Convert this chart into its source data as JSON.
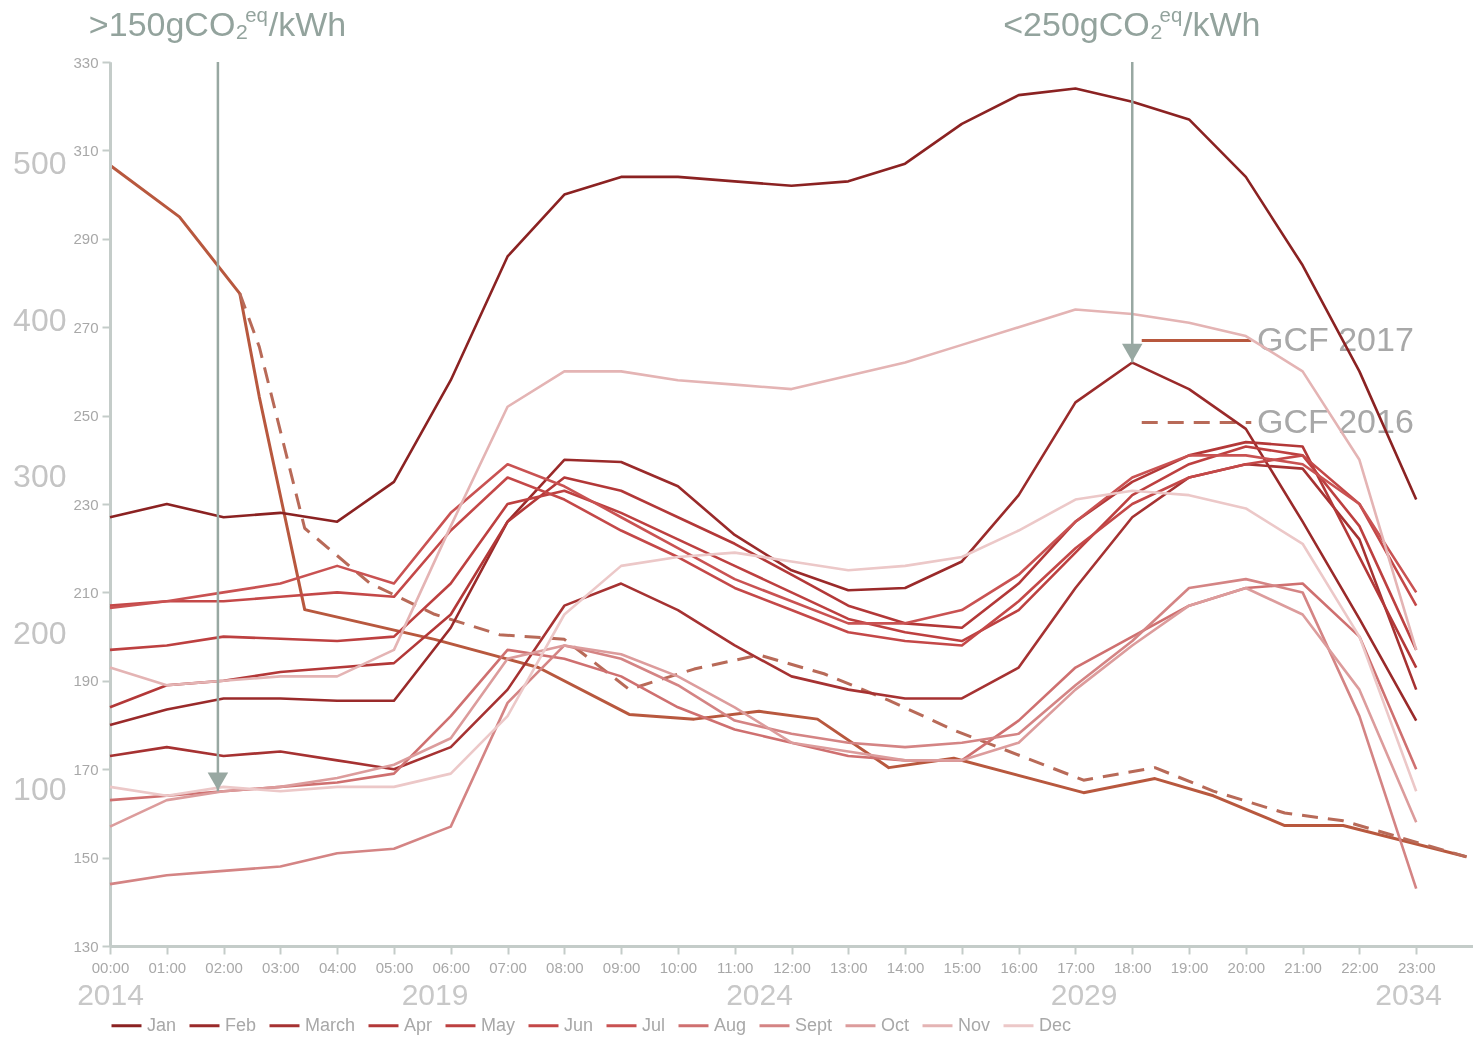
{
  "chart_data": [
    {
      "type": "line",
      "x": [
        0,
        1,
        2,
        3,
        4,
        5,
        6,
        7,
        8,
        9,
        10,
        11,
        12,
        13,
        14,
        15,
        16,
        17,
        18,
        19,
        20,
        21,
        22,
        23
      ],
      "xlim": [
        0,
        24
      ],
      "xticks": [
        {
          "value": 0,
          "label": "00:00"
        },
        {
          "value": 1,
          "label": "01:00"
        },
        {
          "value": 2,
          "label": "02:00"
        },
        {
          "value": 3,
          "label": "03:00"
        },
        {
          "value": 4,
          "label": "04:00"
        },
        {
          "value": 5,
          "label": "05:00"
        },
        {
          "value": 6,
          "label": "06:00"
        },
        {
          "value": 7,
          "label": "07:00"
        },
        {
          "value": 8,
          "label": "08:00"
        },
        {
          "value": 9,
          "label": "09:00"
        },
        {
          "value": 10,
          "label": "10:00"
        },
        {
          "value": 11,
          "label": "11:00"
        },
        {
          "value": 12,
          "label": "12:00"
        },
        {
          "value": 13,
          "label": "13:00"
        },
        {
          "value": 14,
          "label": "14:00"
        },
        {
          "value": 15,
          "label": "15:00"
        },
        {
          "value": 16,
          "label": "16:00"
        },
        {
          "value": 17,
          "label": "17:00"
        },
        {
          "value": 18,
          "label": "18:00"
        },
        {
          "value": 19,
          "label": "19:00"
        },
        {
          "value": 20,
          "label": "20:00"
        },
        {
          "value": 21,
          "label": "21:00"
        },
        {
          "value": 22,
          "label": "22:00"
        },
        {
          "value": 23,
          "label": "23:00"
        }
      ],
      "ylim": [
        130,
        330
      ],
      "yticks": [
        130,
        150,
        170,
        190,
        210,
        230,
        250,
        270,
        290,
        310,
        330
      ],
      "grid": false,
      "legend": "bottom",
      "series": [
        {
          "name": "Jan",
          "color": "#8b2222",
          "values": [
            227,
            230,
            227,
            228,
            226,
            235,
            258,
            286,
            300,
            304,
            304,
            303,
            302,
            303,
            307,
            316,
            322.5,
            324,
            321,
            317,
            304,
            284,
            260,
            231
          ]
        },
        {
          "name": "Feb",
          "color": "#9a2a2a",
          "values": [
            180,
            183.5,
            186,
            186,
            185.5,
            185.5,
            202,
            226,
            240,
            239.5,
            234,
            223,
            215,
            210.5,
            211,
            217,
            232,
            253,
            262,
            256,
            247,
            226,
            204,
            181
          ]
        },
        {
          "name": "March",
          "color": "#a63232",
          "values": [
            173,
            175,
            173,
            174,
            172,
            170,
            175,
            188,
            207,
            212,
            206,
            198,
            191,
            188,
            186,
            186,
            193,
            211,
            227,
            236,
            239,
            238,
            222,
            188
          ]
        },
        {
          "name": "Apr",
          "color": "#b33838",
          "values": [
            184,
            189,
            190,
            192,
            193,
            194,
            205,
            226,
            236,
            233,
            227,
            221,
            214,
            207,
            203,
            202,
            212,
            226,
            235,
            241,
            244,
            243,
            218,
            193
          ]
        },
        {
          "name": "May",
          "color": "#bd4040",
          "values": [
            197,
            198,
            200,
            199.5,
            199,
            200,
            212,
            230,
            233,
            228,
            222,
            216,
            210,
            204,
            201,
            199,
            206,
            219,
            232,
            239,
            243,
            241,
            225,
            197
          ]
        },
        {
          "name": "Jun",
          "color": "#c44848",
          "values": [
            207,
            208,
            208,
            209,
            210,
            209,
            224,
            236,
            231,
            224,
            218,
            211,
            206,
            201,
            199,
            198,
            208,
            220,
            230,
            236,
            239,
            241,
            230,
            207
          ]
        },
        {
          "name": "Jul",
          "color": "#c95252",
          "values": [
            206.5,
            208,
            210,
            212,
            216,
            212,
            228,
            239,
            234,
            227,
            220,
            213,
            208,
            203,
            203,
            206,
            214,
            226,
            236,
            241,
            241,
            239,
            230,
            210
          ]
        },
        {
          "name": "Aug",
          "color": "#cf7070",
          "values": [
            163,
            164,
            165,
            166,
            167,
            169,
            182,
            197,
            195,
            191,
            184,
            179,
            176,
            173,
            172,
            172,
            181,
            193,
            200,
            207,
            211,
            212,
            200,
            170
          ]
        },
        {
          "name": "Sept",
          "color": "#d48484",
          "values": [
            144,
            146,
            147,
            148,
            151,
            152,
            157,
            185,
            198,
            195,
            189,
            181,
            178,
            176,
            175,
            176,
            178,
            189,
            199,
            211,
            213,
            210,
            182,
            143
          ]
        },
        {
          "name": "Oct",
          "color": "#dc9c9c",
          "values": [
            157,
            163,
            165,
            166,
            168,
            171,
            177,
            195,
            198,
            196,
            191,
            184,
            176,
            174,
            172,
            172,
            176,
            188,
            198,
            207,
            211,
            205,
            188,
            158
          ]
        },
        {
          "name": "Nov",
          "color": "#e4b4b4",
          "values": [
            193,
            189,
            190,
            191,
            191,
            197,
            225,
            252,
            260,
            260,
            258,
            257,
            256,
            259,
            262,
            266,
            270,
            274,
            273,
            271,
            268,
            260,
            240,
            197
          ]
        },
        {
          "name": "Dec",
          "color": "#ecc8c8",
          "values": [
            166,
            164,
            166,
            165,
            166,
            166,
            169,
            182,
            205,
            216,
            218,
            219,
            217,
            215,
            216,
            218,
            224,
            231,
            233,
            232,
            229,
            221,
            200,
            165
          ]
        }
      ],
      "annotations": [
        {
          "text": ">150gCO₂$^{eq}$/kWh",
          "x": 1.9,
          "y": 165
        },
        {
          "text": "<250gCO₂$^{eq}$/kWh",
          "x": 18,
          "y": 262
        }
      ]
    },
    {
      "type": "line",
      "xlim": [
        2014,
        2035
      ],
      "xticks": [
        2014,
        2019,
        2024,
        2029,
        2034
      ],
      "ylim": [
        0,
        565
      ],
      "yticks": [
        100,
        200,
        300,
        400,
        500
      ],
      "grid": false,
      "legend": "right",
      "series": [
        {
          "name": "GCF 2017",
          "color": "#b8583e",
          "line_style": "solid",
          "x": [
            2014,
            2015.07,
            2016,
            2016.3,
            2017,
            2019,
            2020.6,
            2022,
            2023,
            2024,
            2024.9,
            2026,
            2027,
            2029,
            2030.1,
            2031,
            2032.1,
            2033,
            2034.9
          ],
          "values": [
            499,
            466,
            417,
            351,
            215,
            196,
            178,
            148,
            145,
            150,
            145,
            114,
            120,
            98,
            107,
            96,
            77,
            77,
            57
          ]
        },
        {
          "name": "GCF 2016",
          "color": "#b86a58",
          "line_style": "dashed",
          "x": [
            2016,
            2016.3,
            2017,
            2018,
            2019,
            2020,
            2021,
            2022,
            2023,
            2024,
            2025,
            2026,
            2027,
            2029,
            2030.1,
            2031,
            2032.1,
            2033,
            2034.9
          ],
          "values": [
            417,
            383,
            267,
            232,
            212,
            199,
            196,
            164,
            177,
            186,
            174,
            157,
            138,
            106,
            114,
            99,
            85,
            80,
            57
          ]
        }
      ]
    }
  ]
}
